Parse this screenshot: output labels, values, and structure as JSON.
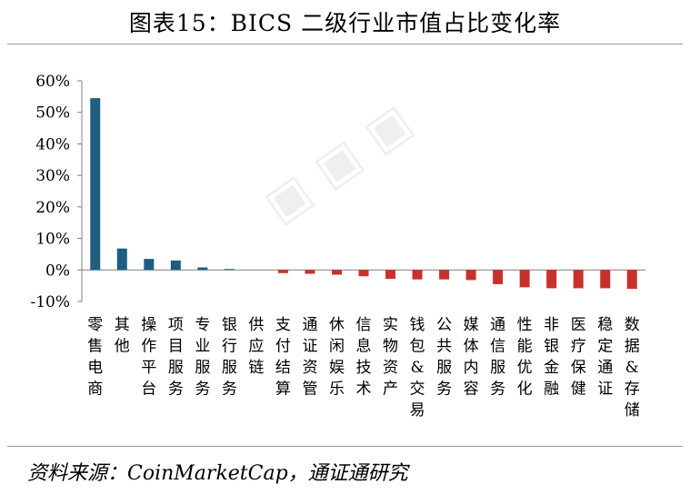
{
  "title": "图表15：BICS 二级行业市值占比变化率",
  "source": "资料来源：CoinMarketCap，通证通研究",
  "colors": {
    "positive": "#1f5d82",
    "negative": "#c9302c",
    "axis": "#7f7f7f"
  },
  "chart_data": {
    "type": "bar",
    "title": "图表15：BICS 二级行业市值占比变化率",
    "xlabel": "",
    "ylabel": "",
    "ylim": [
      -10,
      60
    ],
    "yticks": [
      -10,
      0,
      10,
      20,
      30,
      40,
      50,
      60
    ],
    "ytick_labels": [
      "-10%",
      "0%",
      "10%",
      "20%",
      "30%",
      "40%",
      "50%",
      "60%"
    ],
    "grid": false,
    "categories": [
      "零售电商",
      "其他",
      "操作平台",
      "项目服务",
      "专业服务",
      "银行服务",
      "供应链",
      "支付结算",
      "通证资管",
      "休闲娱乐",
      "信息技术",
      "实物资产",
      "钱包&交易",
      "公共服务",
      "媒体内容",
      "通信服务",
      "性能优化",
      "非银金融",
      "医疗保健",
      "稳定通证",
      "数据&存储"
    ],
    "values": [
      54.5,
      6.8,
      3.5,
      3.0,
      0.8,
      0.3,
      0,
      -1.0,
      -1.2,
      -1.5,
      -2.0,
      -2.8,
      -3.0,
      -3.0,
      -3.2,
      -4.5,
      -5.5,
      -5.8,
      -5.8,
      -5.8,
      -6.0
    ]
  }
}
